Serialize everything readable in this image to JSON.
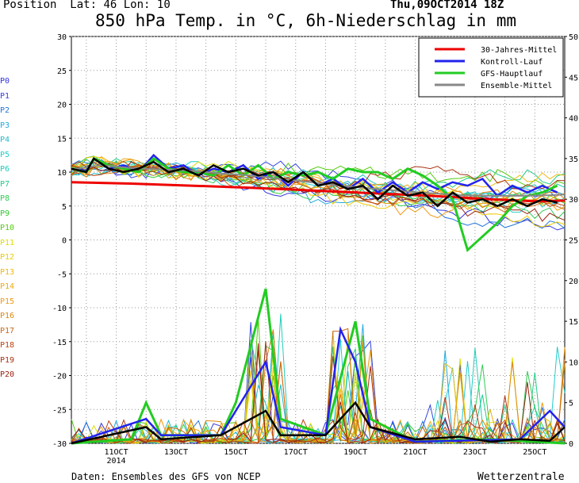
{
  "header": {
    "position_label": "Position",
    "lat_label": "Lat: 46",
    "lon_label": "Lon: 10",
    "datetime": "Thu,09OCT2014 18Z",
    "title": "850 hPa Temp. in °C, 6h-Niederschlag in mm"
  },
  "footer": {
    "source": "Daten: Ensembles des GFS von NCEP",
    "brand": "Wetterzentrale"
  },
  "members": [
    {
      "label": "P0",
      "color": "#3333dd"
    },
    {
      "label": "P1",
      "color": "#3344dd"
    },
    {
      "label": "P2",
      "color": "#2277dd"
    },
    {
      "label": "P3",
      "color": "#22aadd"
    },
    {
      "label": "P4",
      "color": "#22bbcc"
    },
    {
      "label": "P5",
      "color": "#22cccc"
    },
    {
      "label": "P6",
      "color": "#22ccbb"
    },
    {
      "label": "P7",
      "color": "#22cc88"
    },
    {
      "label": "P8",
      "color": "#33cc55"
    },
    {
      "label": "P9",
      "color": "#33cc33"
    },
    {
      "label": "P10",
      "color": "#55cc11"
    },
    {
      "label": "P11",
      "color": "#dddd00"
    },
    {
      "label": "P12",
      "color": "#eecc00"
    },
    {
      "label": "P13",
      "color": "#eebb11"
    },
    {
      "label": "P14",
      "color": "#eeaa11"
    },
    {
      "label": "P15",
      "color": "#ee9911"
    },
    {
      "label": "P16",
      "color": "#dd8811"
    },
    {
      "label": "P17",
      "color": "#cc6611"
    },
    {
      "label": "P18",
      "color": "#bb4411"
    },
    {
      "label": "P19",
      "color": "#aa3311"
    },
    {
      "label": "P20",
      "color": "#992211"
    }
  ],
  "chart_data": {
    "type": "line",
    "title": "850 hPa Temp. in °C, 6h-Niederschlag in mm",
    "x_tick_labels": [
      "11OCT",
      "13OCT",
      "15OCT",
      "17OCT",
      "19OCT",
      "21OCT",
      "23OCT",
      "25OCT"
    ],
    "x_sub_label": "2014",
    "y_left_range": [
      -30,
      30
    ],
    "y_left_ticks": [
      30,
      25,
      20,
      15,
      10,
      5,
      0,
      -5,
      -10,
      -15,
      -20,
      -25,
      -30
    ],
    "y_right_range": [
      0,
      50
    ],
    "y_right_ticks": [
      50,
      45,
      40,
      35,
      30,
      25,
      20,
      15,
      10,
      5,
      0
    ],
    "grid": true,
    "legend_position": "top-right",
    "legend": [
      {
        "name": "30-Jahres-Mittel",
        "color": "#ee0000"
      },
      {
        "name": "Kontroll-Lauf",
        "color": "#2222ee"
      },
      {
        "name": "GFS-Hauptlauf",
        "color": "#22cc22"
      },
      {
        "name": "Ensemble-Mittel",
        "color": "#888888"
      }
    ],
    "temperature_series": [
      {
        "name": "30-Jahres-Mittel",
        "color": "#ee0000",
        "width": 3,
        "points": [
          [
            0,
            8.5
          ],
          [
            8,
            8.3
          ],
          [
            16,
            8.0
          ],
          [
            24,
            7.7
          ],
          [
            32,
            7.3
          ],
          [
            40,
            6.9
          ],
          [
            48,
            6.5
          ],
          [
            56,
            6.0
          ],
          [
            62,
            5.7
          ],
          [
            66,
            5.8
          ]
        ]
      },
      {
        "name": "Kontroll-Lauf",
        "color": "#2222ee",
        "width": 2.5,
        "points": [
          [
            0,
            10.5
          ],
          [
            2,
            10.2
          ],
          [
            3,
            12
          ],
          [
            5,
            10.5
          ],
          [
            7,
            11
          ],
          [
            9,
            10
          ],
          [
            11,
            12.5
          ],
          [
            13,
            10.5
          ],
          [
            15,
            11
          ],
          [
            17,
            9.5
          ],
          [
            19,
            10.5
          ],
          [
            21,
            10
          ],
          [
            23,
            11
          ],
          [
            25,
            9
          ],
          [
            27,
            10
          ],
          [
            29,
            8
          ],
          [
            31,
            10
          ],
          [
            33,
            8
          ],
          [
            35,
            9
          ],
          [
            37,
            7.5
          ],
          [
            39,
            9
          ],
          [
            41,
            7
          ],
          [
            43,
            8.5
          ],
          [
            45,
            7
          ],
          [
            47,
            8.5
          ],
          [
            49,
            7.5
          ],
          [
            51,
            8.5
          ],
          [
            53,
            8
          ],
          [
            55,
            9
          ],
          [
            57,
            6.5
          ],
          [
            59,
            8
          ],
          [
            61,
            7
          ],
          [
            63,
            8
          ],
          [
            65,
            7
          ]
        ]
      },
      {
        "name": "GFS-Hauptlauf",
        "color": "#22cc22",
        "width": 3,
        "points": [
          [
            0,
            10.5
          ],
          [
            2,
            10
          ],
          [
            3,
            12
          ],
          [
            5,
            11
          ],
          [
            7,
            10.5
          ],
          [
            9,
            10
          ],
          [
            11,
            12
          ],
          [
            13,
            10.5
          ],
          [
            15,
            10
          ],
          [
            17,
            10
          ],
          [
            19,
            9.5
          ],
          [
            21,
            11
          ],
          [
            23,
            9.5
          ],
          [
            25,
            11
          ],
          [
            27,
            9
          ],
          [
            29,
            10
          ],
          [
            31,
            9.5
          ],
          [
            33,
            10
          ],
          [
            35,
            9
          ],
          [
            37,
            10.5
          ],
          [
            39,
            10
          ],
          [
            41,
            10
          ],
          [
            43,
            9
          ],
          [
            45,
            10.5
          ],
          [
            47,
            9.5
          ],
          [
            49,
            8
          ],
          [
            51,
            6
          ],
          [
            53,
            -1.5
          ],
          [
            55,
            0.5
          ],
          [
            57,
            2.5
          ],
          [
            59,
            5
          ],
          [
            61,
            6.5
          ],
          [
            63,
            7
          ],
          [
            65,
            8
          ]
        ]
      },
      {
        "name": "Ensemble-Mittel",
        "color": "#888888",
        "width": 2,
        "points": [
          [
            0,
            10.4
          ],
          [
            4,
            11
          ],
          [
            8,
            10.6
          ],
          [
            12,
            10.4
          ],
          [
            16,
            10.2
          ],
          [
            20,
            9.8
          ],
          [
            24,
            9.5
          ],
          [
            28,
            9.0
          ],
          [
            32,
            8.5
          ],
          [
            36,
            8.0
          ],
          [
            40,
            7.6
          ],
          [
            44,
            7.2
          ],
          [
            48,
            6.9
          ],
          [
            52,
            6.6
          ],
          [
            56,
            6.5
          ],
          [
            60,
            6.5
          ],
          [
            64,
            6.6
          ],
          [
            66,
            6.7
          ]
        ]
      },
      {
        "name": "black-mean",
        "color": "#000000",
        "width": 2.5,
        "points": [
          [
            0,
            10.5
          ],
          [
            2,
            10
          ],
          [
            3,
            12
          ],
          [
            5,
            10.5
          ],
          [
            7,
            10
          ],
          [
            9,
            10.5
          ],
          [
            11,
            11.5
          ],
          [
            13,
            10
          ],
          [
            15,
            10.5
          ],
          [
            17,
            9.5
          ],
          [
            19,
            11
          ],
          [
            21,
            10
          ],
          [
            23,
            10.5
          ],
          [
            25,
            9.5
          ],
          [
            27,
            10
          ],
          [
            29,
            8.5
          ],
          [
            31,
            10
          ],
          [
            33,
            8
          ],
          [
            35,
            8.5
          ],
          [
            37,
            7.5
          ],
          [
            39,
            8
          ],
          [
            41,
            6
          ],
          [
            43,
            8
          ],
          [
            45,
            6.5
          ],
          [
            47,
            7
          ],
          [
            49,
            5
          ],
          [
            51,
            7
          ],
          [
            53,
            5.5
          ],
          [
            55,
            6
          ],
          [
            57,
            5
          ],
          [
            59,
            6
          ],
          [
            61,
            5
          ],
          [
            63,
            6
          ],
          [
            65,
            5.5
          ]
        ]
      }
    ],
    "precipitation_series": [
      {
        "name": "GFS-Hauptlauf",
        "color": "#22cc22",
        "width": 3,
        "points": [
          [
            0,
            0
          ],
          [
            8,
            0.5
          ],
          [
            10,
            5
          ],
          [
            12,
            1
          ],
          [
            20,
            1
          ],
          [
            22,
            5
          ],
          [
            26,
            19
          ],
          [
            28,
            3
          ],
          [
            34,
            1
          ],
          [
            38,
            15
          ],
          [
            40,
            3
          ],
          [
            46,
            0.2
          ],
          [
            56,
            0.5
          ],
          [
            66,
            0
          ]
        ]
      },
      {
        "name": "Kontroll-Lauf",
        "color": "#2222ee",
        "width": 2.5,
        "points": [
          [
            0,
            0
          ],
          [
            10,
            3
          ],
          [
            12,
            1
          ],
          [
            20,
            1
          ],
          [
            26,
            10
          ],
          [
            28,
            2
          ],
          [
            34,
            1
          ],
          [
            36,
            14
          ],
          [
            38,
            10
          ],
          [
            40,
            2
          ],
          [
            46,
            0.2
          ],
          [
            60,
            0.5
          ],
          [
            64,
            4
          ],
          [
            66,
            2
          ]
        ]
      },
      {
        "name": "black-mean",
        "color": "#000000",
        "width": 2.5,
        "points": [
          [
            0,
            0
          ],
          [
            10,
            2
          ],
          [
            12,
            0.5
          ],
          [
            20,
            1
          ],
          [
            26,
            4
          ],
          [
            28,
            1
          ],
          [
            34,
            1
          ],
          [
            38,
            5
          ],
          [
            40,
            2
          ],
          [
            46,
            0.5
          ],
          [
            52,
            0.8
          ],
          [
            56,
            0.2
          ],
          [
            60,
            0.5
          ],
          [
            64,
            0.3
          ],
          [
            66,
            2
          ]
        ]
      }
    ]
  }
}
